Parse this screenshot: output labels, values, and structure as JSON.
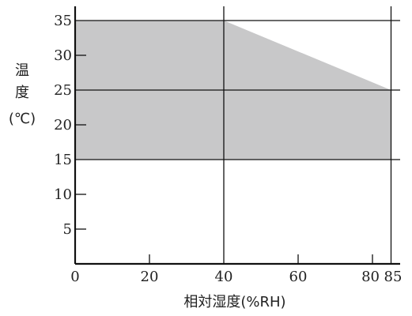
{
  "chart_data": {
    "type": "area",
    "xlabel": "相対湿度(%RH)",
    "ylabel_chars": [
      "温",
      "度",
      "(℃)"
    ],
    "xlim": [
      0,
      90
    ],
    "ylim": [
      0,
      37
    ],
    "x_ticks": [
      0,
      20,
      40,
      60,
      80,
      85
    ],
    "y_ticks": [
      5,
      10,
      15,
      20,
      25,
      30,
      35
    ],
    "x_gridlines": [
      40,
      85
    ],
    "y_gridlines": [
      15,
      25,
      35
    ],
    "region": {
      "name": "",
      "color": "#c8c8c9",
      "points": [
        [
          0,
          15
        ],
        [
          0,
          35
        ],
        [
          40,
          35
        ],
        [
          85,
          25
        ],
        [
          85,
          15
        ]
      ]
    },
    "grid": "partial"
  }
}
